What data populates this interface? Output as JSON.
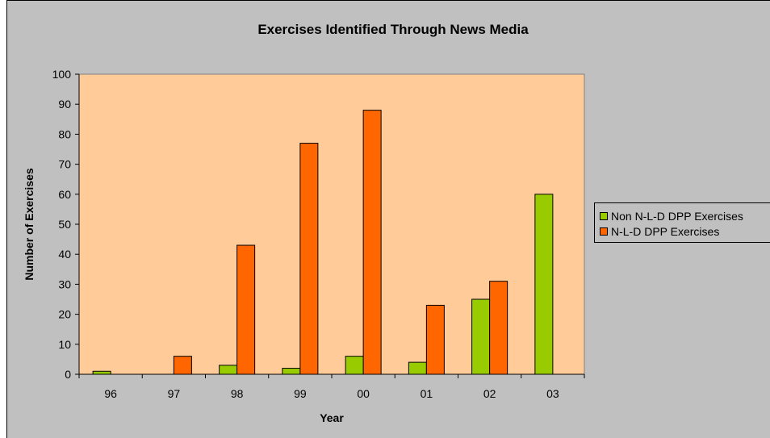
{
  "chart_data": {
    "type": "bar",
    "title": "Exercises Identified Through News Media",
    "xlabel": "Year",
    "ylabel": "Number of Exercises",
    "categories": [
      "96",
      "97",
      "98",
      "99",
      "00",
      "01",
      "02",
      "03"
    ],
    "ylim": [
      0,
      100
    ],
    "yticks": [
      0,
      10,
      20,
      30,
      40,
      50,
      60,
      70,
      80,
      90,
      100
    ],
    "grid": false,
    "legend_position": "right",
    "series": [
      {
        "name": "Non N-L-D DPP Exercises",
        "color": "#99cc00",
        "values": [
          1,
          0,
          3,
          2,
          6,
          4,
          25,
          60
        ]
      },
      {
        "name": "N-L-D DPP Exercises",
        "color": "#ff6600",
        "values": [
          0,
          6,
          43,
          77,
          88,
          23,
          31,
          0
        ]
      }
    ],
    "plot_background": "#ffcc99",
    "chart_background": "#c0c0c0"
  }
}
